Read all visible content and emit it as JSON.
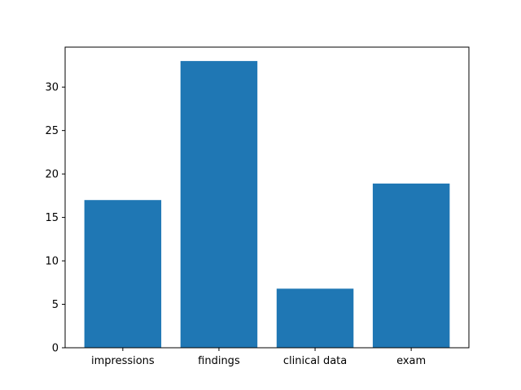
{
  "chart_data": {
    "type": "bar",
    "title": "",
    "xlabel": "",
    "ylabel": "",
    "categories": [
      "impressions",
      "findings",
      "clinical data",
      "exam"
    ],
    "values": [
      17.0,
      33.0,
      6.8,
      18.9
    ],
    "ylim": [
      0,
      34.6
    ],
    "yticks": [
      0,
      5,
      10,
      15,
      20,
      25,
      30
    ],
    "yticks_labels": [
      "0",
      "5",
      "10",
      "15",
      "20",
      "25",
      "30"
    ],
    "bar_color": "#1f77b4",
    "grid": false,
    "legend": "none"
  }
}
